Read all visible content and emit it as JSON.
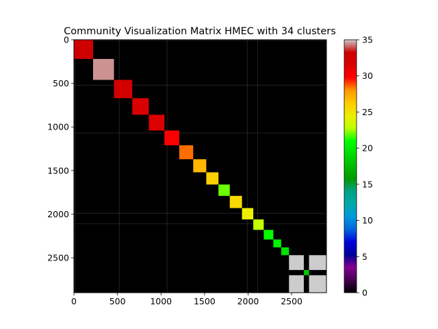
{
  "chart_data": {
    "type": "heatmap",
    "title": "Community Visualization Matrix HMEC with 34 clusters",
    "xlabel": "",
    "ylabel": "",
    "xlim": [
      0,
      2900
    ],
    "ylim": [
      2900,
      0
    ],
    "x_ticks": [
      0,
      500,
      1000,
      1500,
      2000,
      2500
    ],
    "y_ticks": [
      0,
      500,
      1000,
      1500,
      2000,
      2500
    ],
    "colorbar": {
      "range": [
        0,
        35
      ],
      "ticks": [
        0,
        5,
        10,
        15,
        20,
        25,
        30,
        35
      ],
      "colormap": "nipy_spectral"
    },
    "background_value": 0,
    "blocks": [
      {
        "start": 0,
        "end": 220,
        "value": 33
      },
      {
        "start": 220,
        "end": 460,
        "value": 34.5
      },
      {
        "start": 460,
        "end": 670,
        "value": 32.5
      },
      {
        "start": 670,
        "end": 860,
        "value": 32
      },
      {
        "start": 860,
        "end": 1040,
        "value": 31.5
      },
      {
        "start": 1040,
        "end": 1210,
        "value": 30
      },
      {
        "start": 1210,
        "end": 1370,
        "value": 28.5
      },
      {
        "start": 1370,
        "end": 1520,
        "value": 27
      },
      {
        "start": 1520,
        "end": 1660,
        "value": 26
      },
      {
        "start": 1660,
        "end": 1790,
        "value": 22
      },
      {
        "start": 1790,
        "end": 1930,
        "value": 25.5
      },
      {
        "start": 1930,
        "end": 2060,
        "value": 24.5
      },
      {
        "start": 2060,
        "end": 2180,
        "value": 23
      },
      {
        "start": 2180,
        "end": 2290,
        "value": 21
      },
      {
        "start": 2290,
        "end": 2380,
        "value": 20.5
      },
      {
        "start": 2380,
        "end": 2470,
        "value": 19.5
      },
      {
        "start": 2470,
        "end": 2640,
        "value": 35
      },
      {
        "start": 2640,
        "end": 2700,
        "value": 18
      },
      {
        "start": 2700,
        "end": 2900,
        "value": 35
      }
    ],
    "off_diagonal_blocks": [
      {
        "rows": [
          2470,
          2640
        ],
        "cols": [
          2700,
          2900
        ],
        "value": 35
      },
      {
        "rows": [
          2700,
          2900
        ],
        "cols": [
          2470,
          2640
        ],
        "value": 35
      }
    ],
    "sparse_lines_at": [
      10,
      520,
      1070,
      1990,
      2110
    ]
  }
}
